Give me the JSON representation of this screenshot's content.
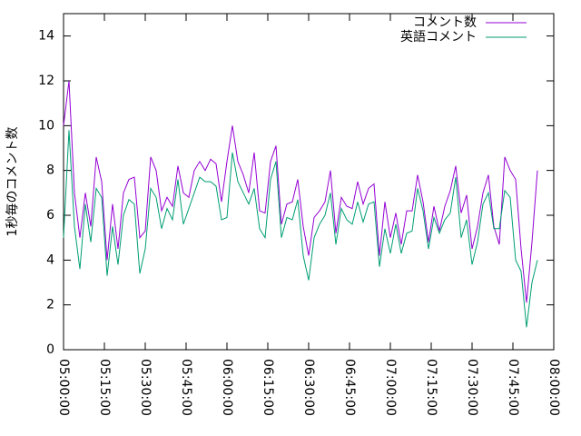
{
  "chart_data": {
    "type": "line",
    "ylabel": "1秒毎のコメント数",
    "x": [
      "05:00:00",
      "05:02:00",
      "05:04:00",
      "05:06:00",
      "05:08:00",
      "05:10:00",
      "05:12:00",
      "05:14:00",
      "05:16:00",
      "05:18:00",
      "05:20:00",
      "05:22:00",
      "05:24:00",
      "05:26:00",
      "05:28:00",
      "05:30:00",
      "05:32:00",
      "05:34:00",
      "05:36:00",
      "05:38:00",
      "05:40:00",
      "05:42:00",
      "05:44:00",
      "05:46:00",
      "05:48:00",
      "05:50:00",
      "05:52:00",
      "05:54:00",
      "05:56:00",
      "05:58:00",
      "06:00:00",
      "06:02:00",
      "06:04:00",
      "06:06:00",
      "06:08:00",
      "06:10:00",
      "06:12:00",
      "06:14:00",
      "06:16:00",
      "06:18:00",
      "06:20:00",
      "06:22:00",
      "06:24:00",
      "06:26:00",
      "06:28:00",
      "06:30:00",
      "06:32:00",
      "06:34:00",
      "06:36:00",
      "06:38:00",
      "06:40:00",
      "06:42:00",
      "06:44:00",
      "06:46:00",
      "06:48:00",
      "06:50:00",
      "06:52:00",
      "06:54:00",
      "06:56:00",
      "06:58:00",
      "07:00:00",
      "07:02:00",
      "07:04:00",
      "07:06:00",
      "07:08:00",
      "07:10:00",
      "07:12:00",
      "07:14:00",
      "07:16:00",
      "07:18:00",
      "07:20:00",
      "07:22:00",
      "07:24:00",
      "07:26:00",
      "07:28:00",
      "07:30:00",
      "07:32:00",
      "07:34:00",
      "07:36:00",
      "07:38:00",
      "07:40:00",
      "07:42:00",
      "07:44:00",
      "07:46:00",
      "07:48:00",
      "07:50:00",
      "07:52:00",
      "07:54:00"
    ],
    "series": [
      {
        "name": "コメント数",
        "color": "#9400d3",
        "values": [
          10,
          12,
          7,
          5,
          7,
          5.5,
          8.6,
          7.5,
          4,
          6.5,
          4.5,
          7,
          7.6,
          7.7,
          5,
          5.3,
          8.6,
          8,
          6.2,
          6.8,
          6.4,
          8.2,
          7,
          6.8,
          8,
          8.4,
          8,
          8.5,
          8.3,
          6.6,
          8.4,
          10,
          8.4,
          7.8,
          7,
          8.8,
          6.2,
          6.1,
          8.4,
          9.1,
          5.6,
          6.5,
          6.6,
          7.6,
          5.5,
          4.2,
          5.9,
          6.2,
          6.6,
          8,
          5.2,
          6.8,
          6.4,
          6.3,
          7.5,
          6.5,
          7.2,
          7.4,
          4.2,
          6.6,
          5,
          6.1,
          4.7,
          6.2,
          6.2,
          7.8,
          6.6,
          4.8,
          6.4,
          5.3,
          6.4,
          7.1,
          8.2,
          6.1,
          6.9,
          4.5,
          5.5,
          7,
          7.8,
          5.5,
          4.7,
          8.6,
          8,
          7.6,
          4.5,
          2.1,
          4.8,
          8
        ]
      },
      {
        "name": "英語コメント",
        "color": "#009e73",
        "values": [
          5,
          9.8,
          5.5,
          3.6,
          6.5,
          4.8,
          7.2,
          6.8,
          3.3,
          5.5,
          3.8,
          6,
          6.7,
          6.5,
          3.4,
          4.5,
          7.2,
          6.8,
          5.4,
          6.3,
          5.8,
          7.6,
          5.6,
          6.3,
          7,
          7.7,
          7.5,
          7.5,
          7.3,
          5.8,
          5.9,
          8.8,
          7.5,
          7,
          6.5,
          7.2,
          5.4,
          5,
          7.6,
          8.4,
          5,
          5.9,
          5.8,
          6.7,
          4.2,
          3.1,
          5,
          5.6,
          6,
          7,
          4.7,
          6.3,
          5.8,
          5.6,
          6.6,
          5.7,
          6.5,
          6.6,
          3.7,
          5.4,
          4.3,
          5.6,
          4.3,
          5.2,
          5.3,
          7.2,
          6.2,
          4.5,
          5.9,
          5.2,
          5.8,
          6.1,
          7.7,
          5,
          5.8,
          3.8,
          4.8,
          6.5,
          7,
          5.4,
          5.4,
          7.1,
          6.8,
          4,
          3.5,
          1,
          3,
          4
        ]
      }
    ],
    "xlim": [
      "05:00:00",
      "08:00:00"
    ],
    "xticks": [
      "05:00:00",
      "05:15:00",
      "05:30:00",
      "05:45:00",
      "06:00:00",
      "06:15:00",
      "06:30:00",
      "06:45:00",
      "07:00:00",
      "07:15:00",
      "07:30:00",
      "07:45:00",
      "08:00:00"
    ],
    "ylim": [
      0,
      15
    ],
    "yticks": [
      0,
      2,
      4,
      6,
      8,
      10,
      12,
      14
    ],
    "legend": "top-right"
  }
}
